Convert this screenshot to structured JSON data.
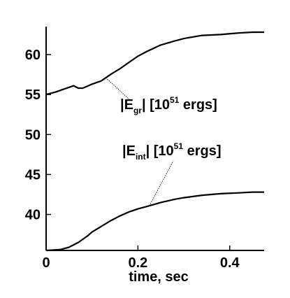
{
  "chart_data": {
    "type": "line",
    "xlabel": "time, sec",
    "xlim": [
      0,
      0.475
    ],
    "ylim": [
      35.5,
      63.5
    ],
    "x_ticks": [
      0,
      0.2,
      0.4
    ],
    "x_tick_labels": [
      "0",
      "0.2",
      "0.4"
    ],
    "y_ticks": [
      40,
      45,
      50,
      55,
      60
    ],
    "y_tick_labels": [
      "40",
      "45",
      "50",
      "55",
      "60"
    ],
    "grid": false,
    "series": [
      {
        "name": "|E_gr| [10^51 ergs]",
        "label": {
          "pre": "|E",
          "sub": "gr",
          "mid": "| [10",
          "sup": "51",
          "post": " ergs]"
        },
        "color": "#000000",
        "points": [
          [
            0,
            55.0
          ],
          [
            0.02,
            55.3
          ],
          [
            0.04,
            55.7
          ],
          [
            0.06,
            56.1
          ],
          [
            0.07,
            55.8
          ],
          [
            0.08,
            55.8
          ],
          [
            0.1,
            56.3
          ],
          [
            0.12,
            56.7
          ],
          [
            0.14,
            57.5
          ],
          [
            0.16,
            58.2
          ],
          [
            0.18,
            59.0
          ],
          [
            0.2,
            59.8
          ],
          [
            0.22,
            60.4
          ],
          [
            0.25,
            61.2
          ],
          [
            0.28,
            61.7
          ],
          [
            0.3,
            62.0
          ],
          [
            0.34,
            62.4
          ],
          [
            0.38,
            62.5
          ],
          [
            0.42,
            62.7
          ],
          [
            0.45,
            62.8
          ],
          [
            0.475,
            62.8
          ]
        ]
      },
      {
        "name": "|E_int| [10^51 ergs]",
        "label": {
          "pre": "|E",
          "sub": "int",
          "mid": "| [10",
          "sup": "51",
          "post": " ergs]"
        },
        "color": "#000000",
        "points": [
          [
            0,
            35.5
          ],
          [
            0.03,
            35.6
          ],
          [
            0.05,
            35.9
          ],
          [
            0.07,
            36.5
          ],
          [
            0.09,
            37.3
          ],
          [
            0.1,
            37.8
          ],
          [
            0.12,
            38.5
          ],
          [
            0.14,
            39.2
          ],
          [
            0.16,
            39.8
          ],
          [
            0.18,
            40.3
          ],
          [
            0.2,
            40.7
          ],
          [
            0.22,
            41.0
          ],
          [
            0.25,
            41.5
          ],
          [
            0.28,
            41.9
          ],
          [
            0.3,
            42.1
          ],
          [
            0.34,
            42.4
          ],
          [
            0.38,
            42.6
          ],
          [
            0.42,
            42.7
          ],
          [
            0.45,
            42.8
          ],
          [
            0.475,
            42.8
          ]
        ]
      }
    ]
  }
}
